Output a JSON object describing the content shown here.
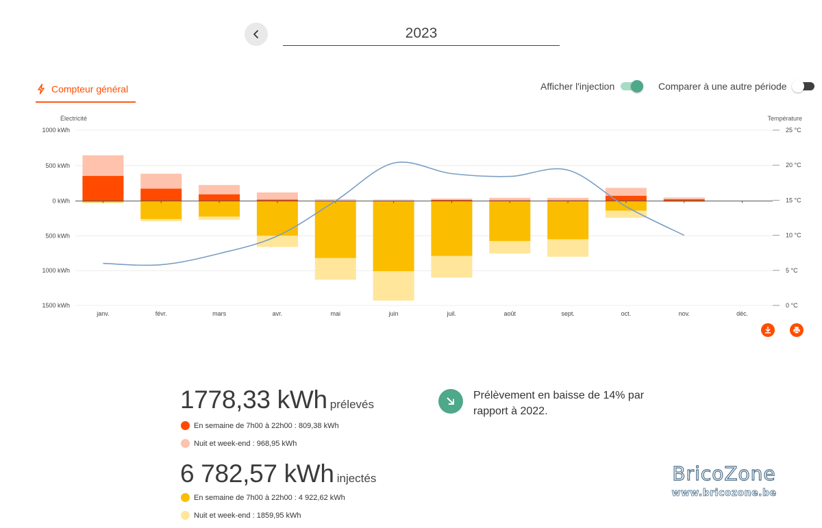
{
  "header": {
    "year": "2023",
    "back_icon": "chevron-left-icon"
  },
  "tab": {
    "label": "Compteur général",
    "icon": "lightning-icon"
  },
  "toggles": {
    "injection": {
      "label": "Afficher l'injection",
      "on": true
    },
    "compare": {
      "label": "Comparer à une autre période",
      "on": false
    }
  },
  "colors": {
    "accent": "#ff4d00",
    "weekday_consumption": "#ff4a00",
    "night_consumption": "#ffc2ad",
    "weekday_injection": "#fbbd00",
    "night_injection": "#ffe69b",
    "temperature": "#7b9ec4",
    "trend": "#4ea88a"
  },
  "chart_data": {
    "type": "bar",
    "left_axis_title": "Électricité",
    "right_axis_title": "Température",
    "left_ticks": [
      {
        "value": 1000,
        "label": "1000 kWh"
      },
      {
        "value": 500,
        "label": "500 kWh"
      },
      {
        "value": 0,
        "label": "0 kWh"
      },
      {
        "value": -500,
        "label": "500 kWh"
      },
      {
        "value": -1000,
        "label": "1000 kWh"
      },
      {
        "value": -1500,
        "label": "1500 kWh"
      }
    ],
    "right_ticks": [
      {
        "value": 25,
        "label": "25 °C"
      },
      {
        "value": 20,
        "label": "20 °C"
      },
      {
        "value": 15,
        "label": "15 °C"
      },
      {
        "value": 10,
        "label": "10 °C"
      },
      {
        "value": 5,
        "label": "5 °C"
      },
      {
        "value": 0,
        "label": "0 °C"
      }
    ],
    "ylim": [
      -1500,
      1000
    ],
    "temp_lim": [
      0,
      25
    ],
    "stacked": true,
    "categories": [
      "janv.",
      "févr.",
      "mars",
      "avr.",
      "mai",
      "juin",
      "juil.",
      "août",
      "sept.",
      "oct.",
      "nov.",
      "déc."
    ],
    "series": [
      {
        "key": "weekday_consumption",
        "values": [
          355,
          175,
          95,
          20,
          5,
          5,
          15,
          10,
          10,
          75,
          25,
          0
        ]
      },
      {
        "key": "night_consumption",
        "values": [
          290,
          210,
          130,
          100,
          20,
          15,
          20,
          35,
          35,
          110,
          25,
          0
        ]
      },
      {
        "key": "weekday_injection",
        "values": [
          -20,
          -260,
          -225,
          -500,
          -820,
          -1010,
          -790,
          -575,
          -550,
          -140,
          -10,
          0
        ]
      },
      {
        "key": "night_injection",
        "values": [
          -5,
          -30,
          -45,
          -160,
          -310,
          -420,
          -310,
          -180,
          -250,
          -100,
          -5,
          0
        ]
      }
    ],
    "temperature": [
      6,
      5.8,
      7.4,
      9.9,
      14.9,
      20.3,
      18.8,
      18.4,
      19.3,
      14.1,
      10,
      null
    ]
  },
  "summary": {
    "consumption_total": "1778,33 kWh",
    "consumption_suffix": "prélevés",
    "consumption_weekday": "En semaine de 7h00 à 22h00 : 809,38 kWh",
    "consumption_night": "Nuit et week-end : 968,95 kWh",
    "injection_total": "6 782,57 kWh",
    "injection_suffix": "injectés",
    "injection_weekday": "En semaine de 7h00 à 22h00 : 4 922,62 kWh",
    "injection_night": "Nuit et week-end : 1859,95 kWh"
  },
  "trend": {
    "text": "Prélèvement en baisse de 14% par rapport à 2022.",
    "icon": "arrow-down-right-icon"
  },
  "actions": {
    "download_icon": "download-icon",
    "print_icon": "printer-icon"
  },
  "watermark": {
    "title": "BricoZone",
    "url": "www.bricozone.be"
  }
}
